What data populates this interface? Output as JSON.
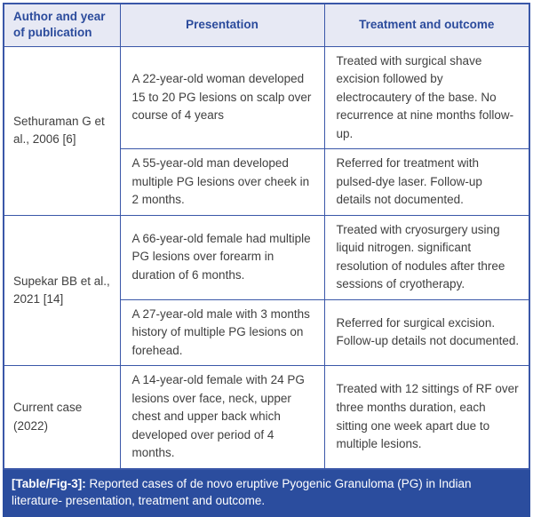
{
  "colors": {
    "line": "#3a57a8",
    "header_bg": "#e7e9f4",
    "header_fg": "#2b4b9c",
    "body_fg": "#3f3f3f",
    "caption_bg": "#2b4d9e",
    "caption_fg": "#ffffff"
  },
  "table": {
    "headers": [
      "Author and year of publication",
      "Presentation",
      "Treatment and outcome"
    ],
    "groups": [
      {
        "author": "Sethuraman G et al., 2006 [6]",
        "cases": [
          {
            "presentation": "A 22-year-old woman developed 15 to 20 PG lesions on scalp over course of 4 years",
            "treatment": "Treated with surgical shave excision followed by electrocautery of the base. No recurrence at nine months follow-up."
          },
          {
            "presentation": "A 55-year-old man developed multiple PG lesions over cheek in 2 months.",
            "treatment": "Referred for treatment with pulsed-dye laser. Follow-up details not documented."
          }
        ]
      },
      {
        "author": "Supekar BB et al., 2021 [14]",
        "cases": [
          {
            "presentation": "A 66-year-old female had multiple PG lesions over forearm in duration of 6 months.",
            "treatment": "Treated with cryosurgery using liquid nitrogen. significant resolution of nodules after three sessions of cryotherapy."
          },
          {
            "presentation": "A 27-year-old male with 3 months history of multiple PG lesions on forehead.",
            "treatment": "Referred for surgical excision. Follow-up details not documented."
          }
        ]
      },
      {
        "author": "Current case (2022)",
        "cases": [
          {
            "presentation": "A 14-year-old female with 24 PG lesions over face, neck, upper chest and upper back which developed over period of 4 months.",
            "treatment": "Treated with 12 sittings of RF over three months duration, each sitting one week apart due to multiple lesions."
          }
        ]
      }
    ]
  },
  "caption": {
    "label": "[Table/Fig-3]:",
    "text": " Reported cases of de novo eruptive Pyogenic Granuloma (PG) in Indian literature- presentation, treatment and outcome."
  }
}
